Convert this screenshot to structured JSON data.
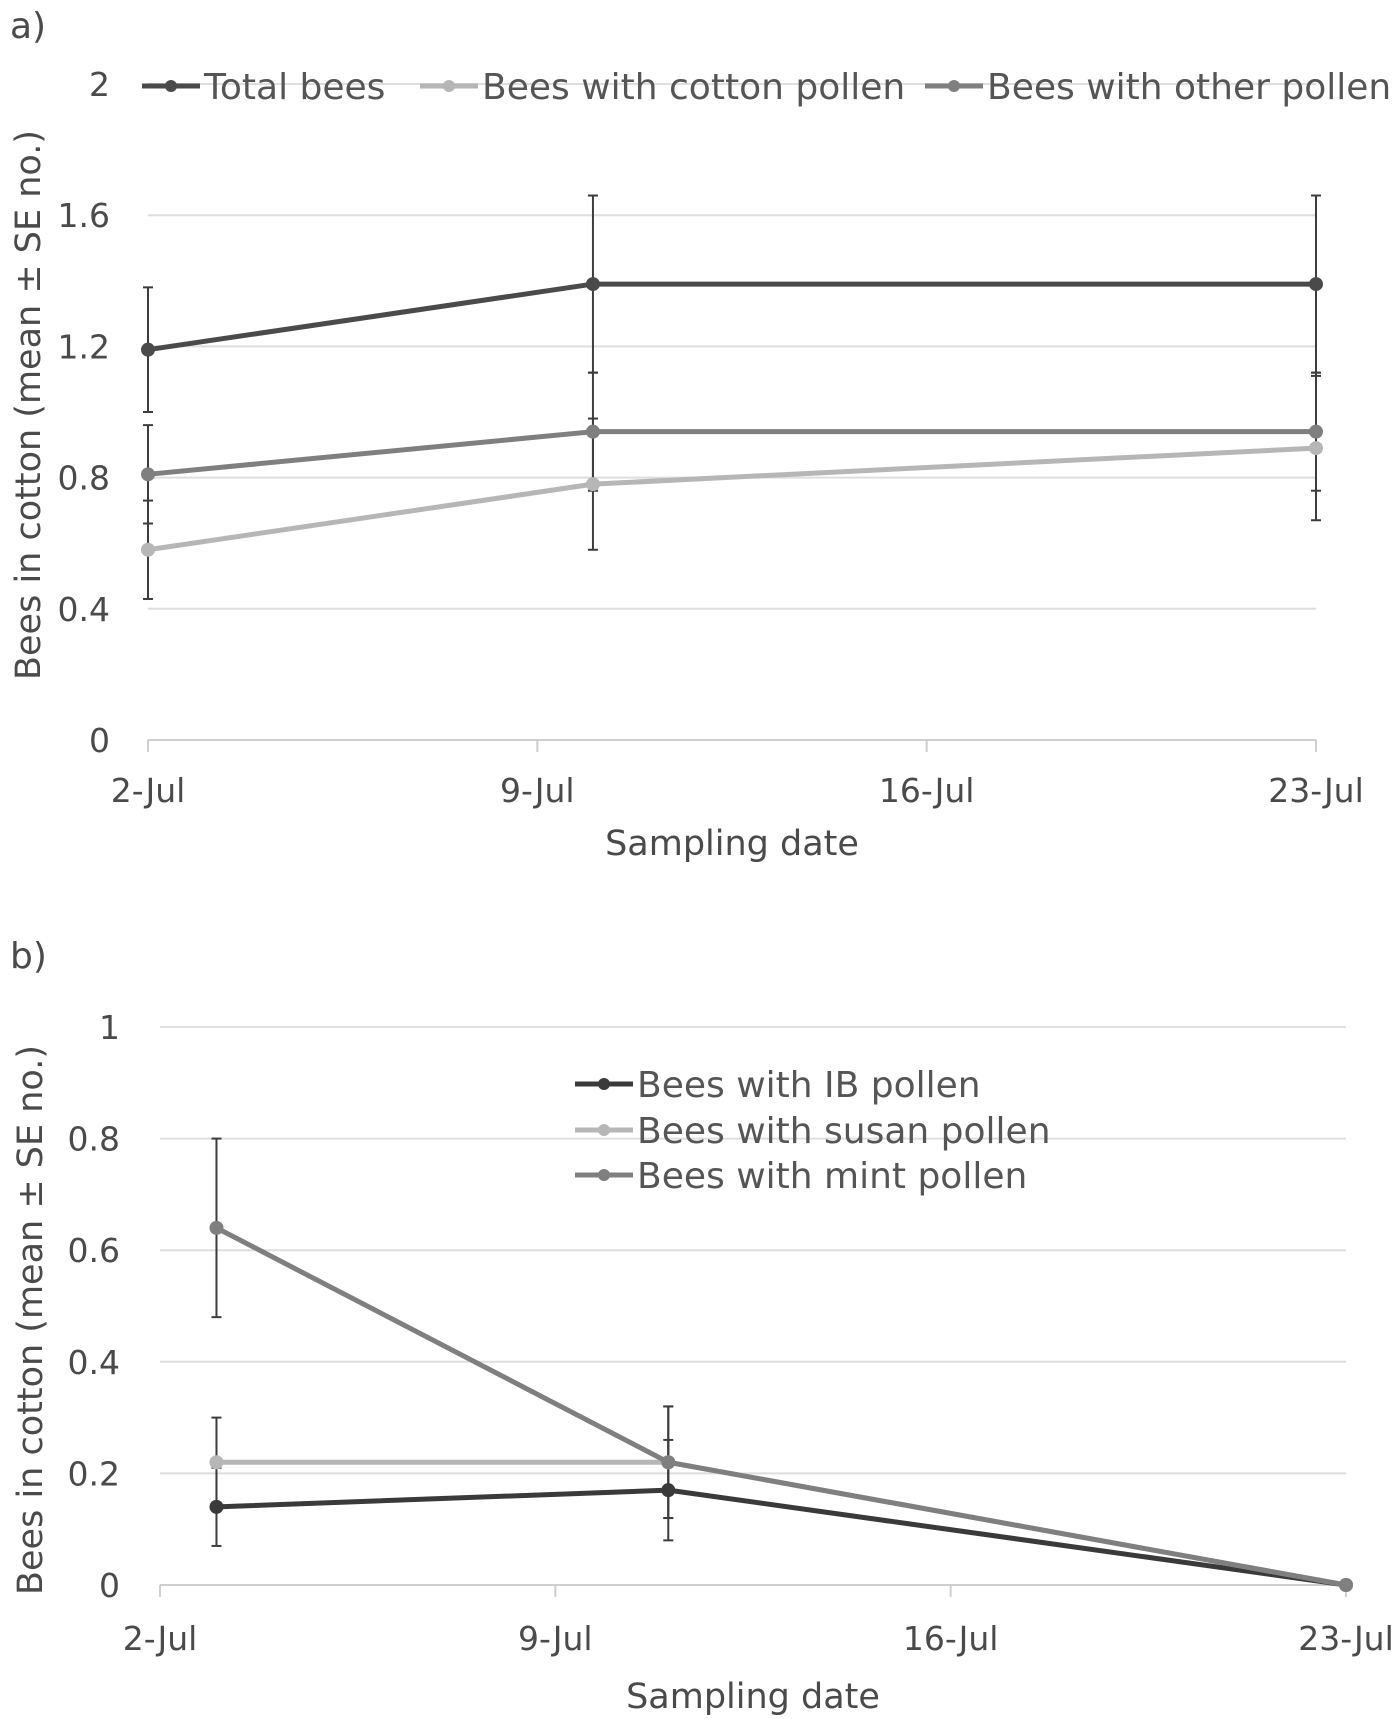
{
  "chart_data": [
    {
      "panel_label": "a)",
      "type": "line",
      "xlabel": "Sampling date",
      "ylabel": "Bees in cotton (mean ± SE no.)",
      "x_ticks": [
        {
          "label": "2-Jul",
          "value": "2-Jul"
        },
        {
          "label": "9-Jul",
          "value": "9-Jul"
        },
        {
          "label": "16-Jul",
          "value": "16-Jul"
        },
        {
          "label": "23-Jul",
          "value": "23-Jul"
        }
      ],
      "x": [
        "2-Jul",
        "10-Jul",
        "23-Jul"
      ],
      "ylim": [
        0,
        2
      ],
      "y_ticks": [
        "0",
        "0.4",
        "0.8",
        "1.2",
        "1.6",
        "2"
      ],
      "legend_position": "top",
      "series": [
        {
          "name": "Total bees",
          "color": "#4a4a4a",
          "values": [
            1.19,
            1.39,
            1.39
          ],
          "error": [
            0.19,
            0.27,
            0.27
          ]
        },
        {
          "name": "Bees with cotton pollen",
          "color": "#b6b6b6",
          "values": [
            0.58,
            0.78,
            0.89
          ],
          "error": [
            0.15,
            0.2,
            0.22
          ]
        },
        {
          "name": "Bees with other pollen",
          "color": "#7f7f7f",
          "values": [
            0.81,
            0.94,
            0.94
          ],
          "error": [
            0.15,
            0.18,
            0.18
          ]
        }
      ]
    },
    {
      "panel_label": "b)",
      "type": "line",
      "xlabel": "Sampling date",
      "ylabel": "Bees in cotton (mean ± SE no.)",
      "x_ticks": [
        {
          "label": "2-Jul",
          "value": "2-Jul"
        },
        {
          "label": "9-Jul",
          "value": "9-Jul"
        },
        {
          "label": "16-Jul",
          "value": "16-Jul"
        },
        {
          "label": "23-Jul",
          "value": "23-Jul"
        }
      ],
      "x": [
        "3-Jul",
        "11-Jul",
        "23-Jul"
      ],
      "ylim": [
        0,
        1
      ],
      "y_ticks": [
        "0",
        "0.2",
        "0.4",
        "0.6",
        "0.8",
        "1"
      ],
      "legend_position": "upper middle",
      "series": [
        {
          "name": "Bees with IB pollen",
          "color": "#3a3a3a",
          "values": [
            0.14,
            0.17,
            0
          ],
          "error": [
            0.07,
            0.09,
            0
          ]
        },
        {
          "name": "Bees with susan pollen",
          "color": "#b6b6b6",
          "values": [
            0.22,
            0.22,
            0
          ],
          "error": [
            0.08,
            0.1,
            0
          ]
        },
        {
          "name": "Bees with mint pollen",
          "color": "#7f7f7f",
          "values": [
            0.64,
            0.22,
            0
          ],
          "error": [
            0.16,
            0.1,
            0
          ]
        }
      ]
    }
  ]
}
